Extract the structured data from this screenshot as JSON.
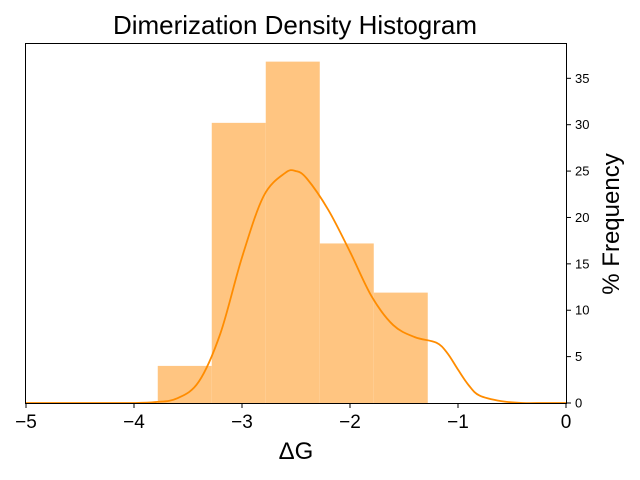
{
  "chart_data": {
    "type": "bar",
    "title": "Dimerization Density Histogram",
    "xlabel": "ΔG",
    "ylabel": "% Frequency",
    "xlim": [
      -5,
      0
    ],
    "ylim": [
      0,
      38.7
    ],
    "xticks": [
      -5,
      -4,
      -3,
      -2,
      -1,
      0
    ],
    "xtick_labels": [
      "−5",
      "−4",
      "−3",
      "−2",
      "−1",
      "0"
    ],
    "yticks": [
      0,
      5,
      10,
      15,
      20,
      25,
      30,
      35
    ],
    "ytick_labels": [
      "0",
      "5",
      "10",
      "15",
      "20",
      "25",
      "30",
      "35"
    ],
    "y_axis_side": "right",
    "grid": false,
    "legend": "none",
    "bar_color": "#ffc581",
    "line_color": "#ff8c00",
    "bins": [
      {
        "x0": -3.78,
        "x1": -3.28,
        "value": 4.0
      },
      {
        "x0": -3.28,
        "x1": -2.78,
        "value": 30.2
      },
      {
        "x0": -2.78,
        "x1": -2.28,
        "value": 36.8
      },
      {
        "x0": -2.28,
        "x1": -1.78,
        "value": 17.2
      },
      {
        "x0": -1.78,
        "x1": -1.28,
        "value": 11.9
      }
    ],
    "density_curve": {
      "x": [
        -5.0,
        -4.5,
        -4.0,
        -3.8,
        -3.6,
        -3.4,
        -3.2,
        -3.0,
        -2.8,
        -2.6,
        -2.5,
        -2.4,
        -2.2,
        -2.0,
        -1.8,
        -1.6,
        -1.4,
        -1.2,
        -1.1,
        -1.0,
        -0.9,
        -0.8,
        -0.6,
        -0.4,
        -0.2,
        0.0
      ],
      "y": [
        0.0,
        0.0,
        0.0,
        0.1,
        0.5,
        2.3,
        7.5,
        15.7,
        22.3,
        24.8,
        25.0,
        24.2,
        20.8,
        16.3,
        11.5,
        8.4,
        7.1,
        6.5,
        5.4,
        3.6,
        1.9,
        0.8,
        0.2,
        0.0,
        0.0,
        0.0
      ]
    }
  }
}
